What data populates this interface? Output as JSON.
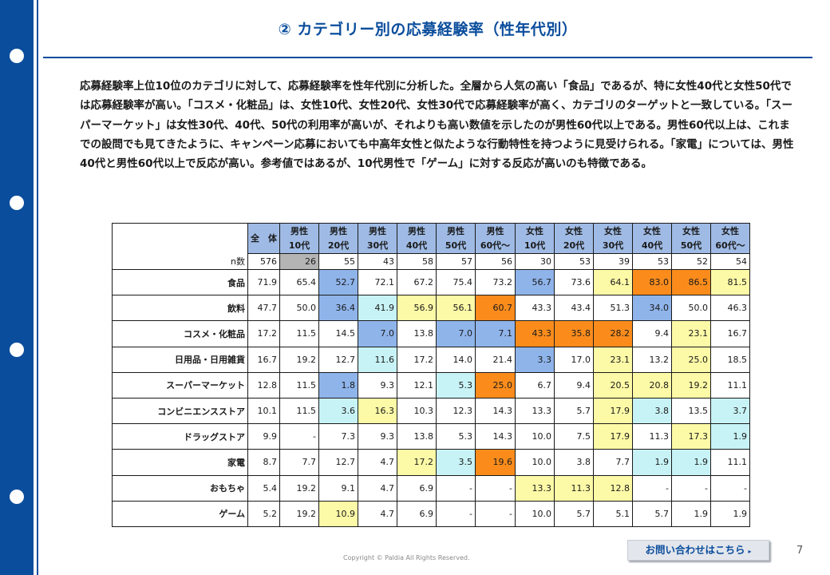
{
  "title": "② カテゴリー別の応募経験率（性年代別）",
  "description": "応募経験率上位10位のカテゴリに対して、応募経験率を性年代別に分析した。全層から人気の高い「食品」であるが、特に女性40代と女性50代では応募経験率が高い。「コスメ・化粧品」は、女性10代、女性20代、女性30代で応募経験率が高く、カテゴリのターゲットと一致している。「スーパーマーケット」は女性30代、40代、50代の利用率が高いが、それよりも高い数値を示したのが男性60代以上である。男性60代以上は、これまでの設問でも見てきたように、キャンペーン応募においても中高年女性と似たような行動特性を持つように見受けられる。「家電」については、男性40代と男性60代以上で反応が高い。参考値ではあるが、10代男性で「ゲーム」に対する反応が高いのも特徴である。",
  "table": {
    "columns": [
      {
        "line1": "全　体",
        "line2": ""
      },
      {
        "line1": "男性",
        "line2": "10代"
      },
      {
        "line1": "男性",
        "line2": "20代"
      },
      {
        "line1": "男性",
        "line2": "30代"
      },
      {
        "line1": "男性",
        "line2": "40代"
      },
      {
        "line1": "男性",
        "line2": "50代"
      },
      {
        "line1": "男性",
        "line2": "60代～"
      },
      {
        "line1": "女性",
        "line2": "10代"
      },
      {
        "line1": "女性",
        "line2": "20代"
      },
      {
        "line1": "女性",
        "line2": "30代"
      },
      {
        "line1": "女性",
        "line2": "40代"
      },
      {
        "line1": "女性",
        "line2": "50代"
      },
      {
        "line1": "女性",
        "line2": "60代～"
      }
    ],
    "n_label": "n数",
    "n_values": [
      "576",
      "26",
      "55",
      "43",
      "58",
      "57",
      "56",
      "30",
      "53",
      "39",
      "53",
      "52",
      "54"
    ],
    "n_highlight": [
      false,
      true,
      false,
      false,
      false,
      false,
      false,
      false,
      false,
      false,
      false,
      false,
      false
    ],
    "rows": [
      {
        "label": "食品",
        "values": [
          "71.9",
          "65.4",
          "52.7",
          "72.1",
          "67.2",
          "75.4",
          "73.2",
          "56.7",
          "73.6",
          "64.1",
          "83.0",
          "86.5",
          "81.5"
        ],
        "colors": [
          "",
          "",
          "blue",
          "",
          "",
          "",
          "",
          "blue",
          "",
          "yellow",
          "orange",
          "orange",
          "yellow"
        ]
      },
      {
        "label": "飲料",
        "values": [
          "47.7",
          "50.0",
          "36.4",
          "41.9",
          "56.9",
          "56.1",
          "60.7",
          "43.3",
          "43.4",
          "51.3",
          "34.0",
          "50.0",
          "46.3"
        ],
        "colors": [
          "",
          "",
          "blue",
          "lblue",
          "yellow",
          "yellow",
          "orange",
          "",
          "",
          "",
          "blue",
          "",
          ""
        ]
      },
      {
        "label": "コスメ・化粧品",
        "values": [
          "17.2",
          "11.5",
          "14.5",
          "7.0",
          "13.8",
          "7.0",
          "7.1",
          "43.3",
          "35.8",
          "28.2",
          "9.4",
          "23.1",
          "16.7"
        ],
        "colors": [
          "",
          "",
          "",
          "blue",
          "",
          "blue",
          "blue",
          "orange",
          "orange",
          "orange",
          "",
          "yellow",
          ""
        ]
      },
      {
        "label": "日用品・日用雑貨",
        "values": [
          "16.7",
          "19.2",
          "12.7",
          "11.6",
          "17.2",
          "14.0",
          "21.4",
          "3.3",
          "17.0",
          "23.1",
          "13.2",
          "25.0",
          "18.5"
        ],
        "colors": [
          "",
          "",
          "",
          "lblue",
          "",
          "",
          "",
          "blue",
          "",
          "yellow",
          "",
          "yellow",
          ""
        ]
      },
      {
        "label": "スーパーマーケット",
        "values": [
          "12.8",
          "11.5",
          "1.8",
          "9.3",
          "12.1",
          "5.3",
          "25.0",
          "6.7",
          "9.4",
          "20.5",
          "20.8",
          "19.2",
          "11.1"
        ],
        "colors": [
          "",
          "",
          "blue",
          "",
          "",
          "lblue",
          "orange",
          "",
          "",
          "yellow",
          "yellow",
          "yellow",
          ""
        ]
      },
      {
        "label": "コンビニエンスストア",
        "values": [
          "10.1",
          "11.5",
          "3.6",
          "16.3",
          "10.3",
          "12.3",
          "14.3",
          "13.3",
          "5.7",
          "17.9",
          "3.8",
          "13.5",
          "3.7"
        ],
        "colors": [
          "",
          "",
          "lblue",
          "yellow",
          "",
          "",
          "",
          "",
          "",
          "yellow",
          "lblue",
          "",
          "lblue"
        ]
      },
      {
        "label": "ドラッグストア",
        "values": [
          "9.9",
          "-",
          "7.3",
          "9.3",
          "13.8",
          "5.3",
          "14.3",
          "10.0",
          "7.5",
          "17.9",
          "11.3",
          "17.3",
          "1.9"
        ],
        "colors": [
          "",
          "",
          "",
          "",
          "",
          "",
          "",
          "",
          "",
          "yellow",
          "",
          "yellow",
          "lblue"
        ]
      },
      {
        "label": "家電",
        "values": [
          "8.7",
          "7.7",
          "12.7",
          "4.7",
          "17.2",
          "3.5",
          "19.6",
          "10.0",
          "3.8",
          "7.7",
          "1.9",
          "1.9",
          "11.1"
        ],
        "colors": [
          "",
          "",
          "",
          "",
          "yellow",
          "lblue",
          "orange",
          "",
          "",
          "",
          "lblue",
          "lblue",
          ""
        ]
      },
      {
        "label": "おもちゃ",
        "values": [
          "5.4",
          "19.2",
          "9.1",
          "4.7",
          "6.9",
          "-",
          "-",
          "13.3",
          "11.3",
          "12.8",
          "-",
          "-",
          "-"
        ],
        "colors": [
          "",
          "",
          "",
          "",
          "",
          "",
          "",
          "yellow",
          "yellow",
          "yellow",
          "",
          "",
          ""
        ]
      },
      {
        "label": "ゲーム",
        "values": [
          "5.2",
          "19.2",
          "10.9",
          "4.7",
          "6.9",
          "-",
          "-",
          "10.0",
          "5.7",
          "5.1",
          "5.7",
          "1.9",
          "1.9"
        ],
        "colors": [
          "",
          "",
          "yellow",
          "",
          "",
          "",
          "",
          "",
          "",
          "",
          "",
          "",
          ""
        ]
      }
    ]
  },
  "contact_button": {
    "label": "お問い合わせはこちら",
    "arrow": "▸"
  },
  "copyright": "Copyright © Paldia All Rights Reserved.",
  "page_number": "7",
  "colors": {
    "accent": "#0a4d9c",
    "header_fill": "#9fbbe5",
    "blue": "#8fb4ea",
    "lblue": "#c8f3f6",
    "yellow": "#fdfaa7",
    "orange": "#fb8c1c",
    "gray": "#b4b4b4"
  }
}
